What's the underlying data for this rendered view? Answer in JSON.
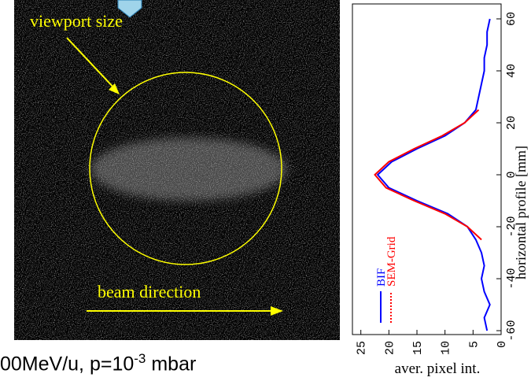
{
  "annotations": {
    "viewport": "viewport size",
    "beam": "beam direction"
  },
  "caption": {
    "text": "00MeV/u, p=10",
    "sup": "-3",
    "tail": " mbar"
  },
  "chart_data": {
    "type": "line",
    "xlabel": "horizontal profile [mm]",
    "ylabel": "aver. pixel int.",
    "xlim": [
      -61.5,
      65.75
    ],
    "xticks": [
      -60,
      -40,
      -20,
      0,
      20,
      40,
      60
    ],
    "ylim": [
      0,
      26.5
    ],
    "yticks": [
      0,
      5,
      10,
      15,
      20,
      25
    ],
    "series": [
      {
        "name": "BIF",
        "color": "#0000ff",
        "x": [
          -60,
          -55,
          -50,
          -45,
          -40,
          -35,
          -30,
          -25,
          -20,
          -15,
          -10,
          -5,
          0,
          5,
          10,
          15,
          20,
          25,
          30,
          35,
          40,
          45,
          50,
          55,
          60
        ],
        "values": [
          2.5,
          3,
          2,
          3,
          3.5,
          3,
          3.5,
          4.5,
          6,
          9.5,
          15,
          20,
          22,
          19.5,
          15,
          10,
          6.5,
          4.5,
          4,
          3.5,
          3,
          3,
          2.5,
          2.5,
          2
        ]
      },
      {
        "name": "SEM-Grid",
        "color": "#ff0000",
        "x": [
          -25,
          -20,
          -15,
          -10,
          -5,
          0,
          5,
          10,
          15,
          20,
          25
        ],
        "values": [
          3.5,
          6,
          10,
          15.5,
          20.5,
          22.5,
          20,
          15.5,
          10.5,
          6.5,
          4
        ]
      }
    ]
  }
}
